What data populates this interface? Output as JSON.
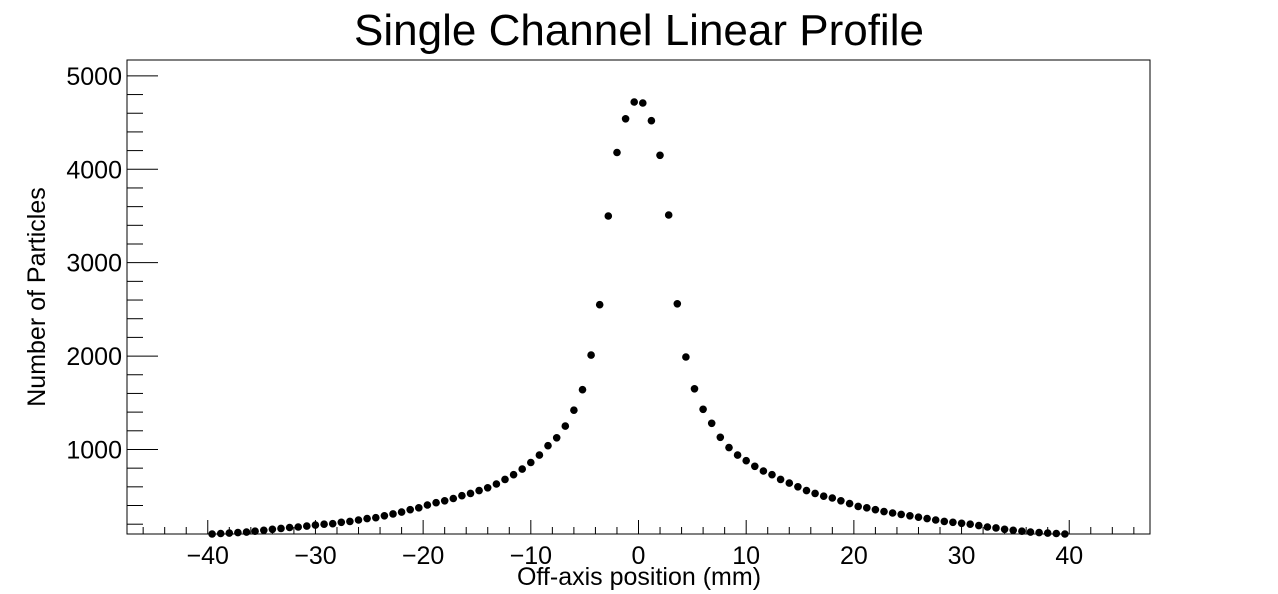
{
  "chart_data": {
    "type": "scatter",
    "title": "Single Channel Linear Profile",
    "xlabel": "Off-axis position (mm)",
    "ylabel": "Number of Particles",
    "xlim": [
      -47.5,
      47.5
    ],
    "ylim": [
      95,
      5170
    ],
    "grid": false,
    "x_major_ticks": [
      -40,
      -30,
      -20,
      -10,
      0,
      10,
      20,
      30,
      40
    ],
    "x_tick_labels": [
      "−40",
      "−30",
      "−20",
      "−10",
      "0",
      "10",
      "20",
      "30",
      "40"
    ],
    "y_major_ticks": [
      1000,
      2000,
      3000,
      4000,
      5000
    ],
    "y_tick_labels": [
      "1000",
      "2000",
      "3000",
      "4000",
      "5000"
    ],
    "marker_color": "#000000",
    "x": [
      -39.6,
      -38.8,
      -38.0,
      -37.2,
      -36.4,
      -35.6,
      -34.8,
      -34.0,
      -33.2,
      -32.4,
      -31.6,
      -30.8,
      -30.0,
      -29.2,
      -28.4,
      -27.6,
      -26.8,
      -26.0,
      -25.2,
      -24.4,
      -23.6,
      -22.8,
      -22.0,
      -21.2,
      -20.4,
      -19.6,
      -18.8,
      -18.0,
      -17.2,
      -16.4,
      -15.6,
      -14.8,
      -14.0,
      -13.2,
      -12.4,
      -11.6,
      -10.8,
      -10.0,
      -9.2,
      -8.4,
      -7.6,
      -6.8,
      -6.0,
      -5.2,
      -4.4,
      -3.6,
      -2.8,
      -2.0,
      -1.2,
      -0.4,
      0.4,
      1.2,
      2.0,
      2.8,
      3.6,
      4.4,
      5.2,
      6.0,
      6.8,
      7.6,
      8.4,
      9.2,
      10.0,
      10.8,
      11.6,
      12.4,
      13.2,
      14.0,
      14.8,
      15.6,
      16.4,
      17.2,
      18.0,
      18.8,
      19.6,
      20.4,
      21.2,
      22.0,
      22.8,
      23.6,
      24.4,
      25.2,
      26.0,
      26.8,
      27.6,
      28.4,
      29.2,
      30.0,
      30.8,
      31.6,
      32.4,
      33.2,
      34.0,
      34.8,
      35.6,
      36.4,
      37.2,
      38.0,
      38.8,
      39.6
    ],
    "y": [
      95,
      100,
      105,
      110,
      115,
      125,
      135,
      145,
      155,
      165,
      170,
      180,
      190,
      200,
      205,
      220,
      230,
      245,
      260,
      270,
      290,
      310,
      330,
      355,
      375,
      405,
      430,
      450,
      475,
      505,
      530,
      560,
      590,
      630,
      680,
      730,
      790,
      860,
      940,
      1040,
      1125,
      1250,
      1420,
      1640,
      2010,
      2550,
      3500,
      4180,
      4540,
      4720,
      4710,
      4520,
      4150,
      3510,
      2560,
      1990,
      1650,
      1430,
      1280,
      1130,
      1020,
      940,
      880,
      820,
      770,
      730,
      680,
      640,
      600,
      560,
      530,
      500,
      480,
      450,
      420,
      390,
      375,
      355,
      335,
      320,
      305,
      290,
      275,
      260,
      245,
      230,
      220,
      210,
      200,
      185,
      170,
      160,
      145,
      135,
      125,
      115,
      110,
      105,
      100,
      95
    ]
  }
}
